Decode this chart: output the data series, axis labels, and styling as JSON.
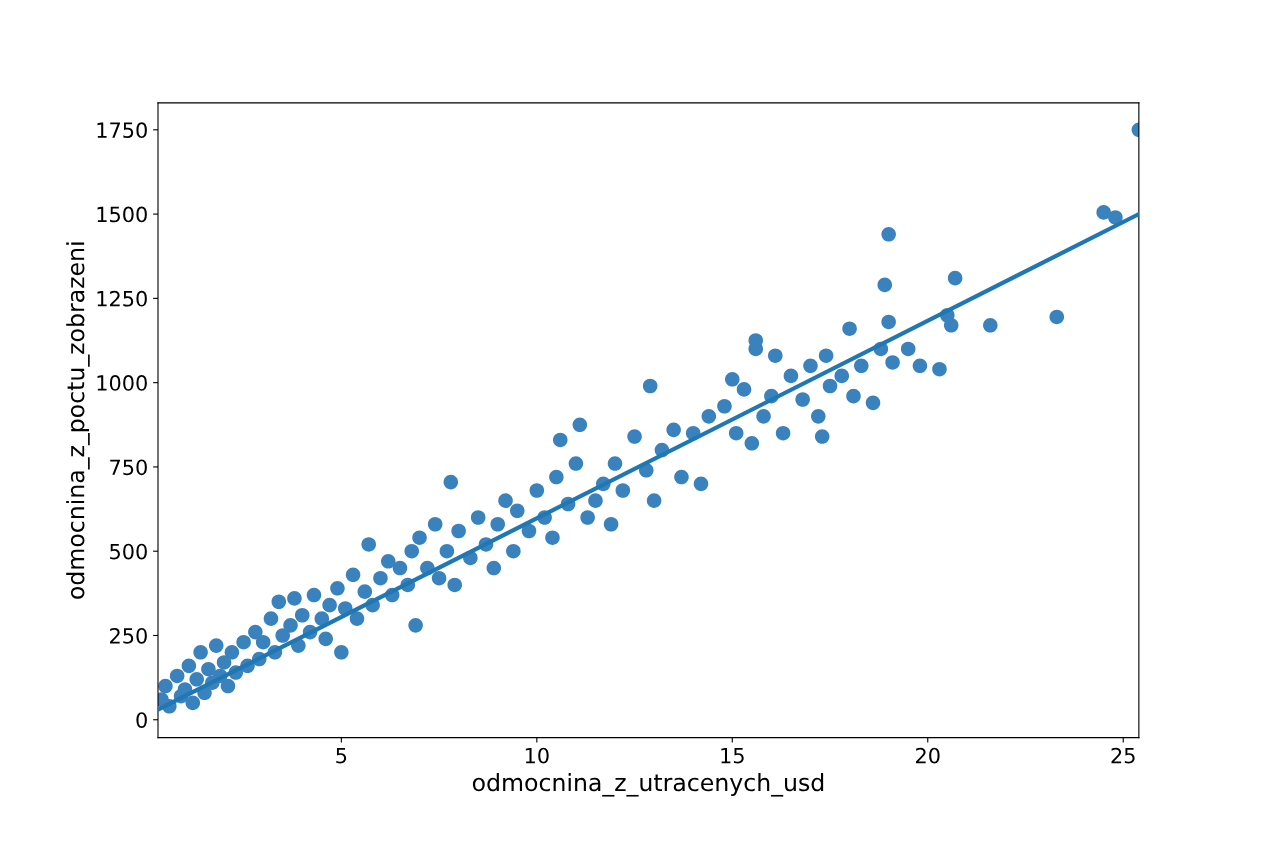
{
  "chart_data": {
    "type": "scatter",
    "xlabel": "odmocnina_z_utracenych_usd",
    "ylabel": "odmocnina_z_poctu_zobrazeni",
    "xlim": [
      0.31,
      25.4
    ],
    "ylim": [
      -53,
      1830
    ],
    "xticks": [
      5,
      10,
      15,
      20,
      25
    ],
    "yticks": [
      0,
      250,
      500,
      750,
      1000,
      1250,
      1500,
      1750
    ],
    "grid": false,
    "legend": false,
    "series": [
      {
        "color": "#3a82bd",
        "marker": "circle",
        "x": [
          0.4,
          0.5,
          0.6,
          0.8,
          0.9,
          1.0,
          1.1,
          1.2,
          1.3,
          1.4,
          1.5,
          1.6,
          1.7,
          1.8,
          1.9,
          2.0,
          2.1,
          2.2,
          2.3,
          2.5,
          2.6,
          2.8,
          2.9,
          3.0,
          3.2,
          3.3,
          3.4,
          3.5,
          3.7,
          3.8,
          3.9,
          4.0,
          4.2,
          4.3,
          4.5,
          4.6,
          4.7,
          4.9,
          5.0,
          5.1,
          5.3,
          5.4,
          5.6,
          5.7,
          5.8,
          6.0,
          6.2,
          6.3,
          6.5,
          6.7,
          6.8,
          6.9,
          7.0,
          7.2,
          7.4,
          7.5,
          7.7,
          7.8,
          7.9,
          8.0,
          8.3,
          8.5,
          8.7,
          8.9,
          9.0,
          9.2,
          9.4,
          9.5,
          9.8,
          10.0,
          10.2,
          10.4,
          10.5,
          10.6,
          10.8,
          11.0,
          11.1,
          11.3,
          11.5,
          11.7,
          11.9,
          12.0,
          12.2,
          12.5,
          12.8,
          12.9,
          13.0,
          13.2,
          13.5,
          13.7,
          14.0,
          14.2,
          14.4,
          14.8,
          15.0,
          15.1,
          15.3,
          15.5,
          15.6,
          15.6,
          15.8,
          16.0,
          16.1,
          16.3,
          16.5,
          16.8,
          17.0,
          17.2,
          17.3,
          17.4,
          17.5,
          17.8,
          18.0,
          18.1,
          18.3,
          18.6,
          18.8,
          18.9,
          19.0,
          19.0,
          19.1,
          19.5,
          19.8,
          20.3,
          20.5,
          20.6,
          20.7,
          21.6,
          23.3,
          24.5,
          24.8,
          25.4
        ],
        "values": [
          60,
          100,
          40,
          130,
          70,
          90,
          160,
          50,
          120,
          200,
          80,
          150,
          110,
          220,
          130,
          170,
          100,
          200,
          140,
          230,
          160,
          260,
          180,
          230,
          300,
          200,
          350,
          250,
          280,
          360,
          220,
          310,
          260,
          370,
          300,
          240,
          340,
          390,
          200,
          330,
          430,
          300,
          380,
          520,
          340,
          420,
          470,
          370,
          450,
          400,
          500,
          280,
          540,
          450,
          580,
          420,
          500,
          705,
          400,
          560,
          480,
          600,
          520,
          450,
          580,
          650,
          500,
          620,
          560,
          680,
          600,
          540,
          720,
          830,
          640,
          760,
          875,
          600,
          650,
          700,
          580,
          760,
          680,
          840,
          740,
          990,
          650,
          800,
          860,
          720,
          850,
          700,
          900,
          930,
          1010,
          850,
          980,
          820,
          1100,
          1125,
          900,
          960,
          1080,
          850,
          1020,
          950,
          1050,
          900,
          840,
          1080,
          990,
          1020,
          1160,
          960,
          1050,
          940,
          1100,
          1290,
          1440,
          1180,
          1060,
          1100,
          1050,
          1040,
          1200,
          1170,
          1310,
          1170,
          1195,
          1505,
          1490,
          1750
        ]
      },
      {
        "type": "line",
        "marker": "none",
        "color": "#1f77b4",
        "x": [
          0.31,
          25.4
        ],
        "values": [
          30,
          1500
        ]
      }
    ]
  }
}
